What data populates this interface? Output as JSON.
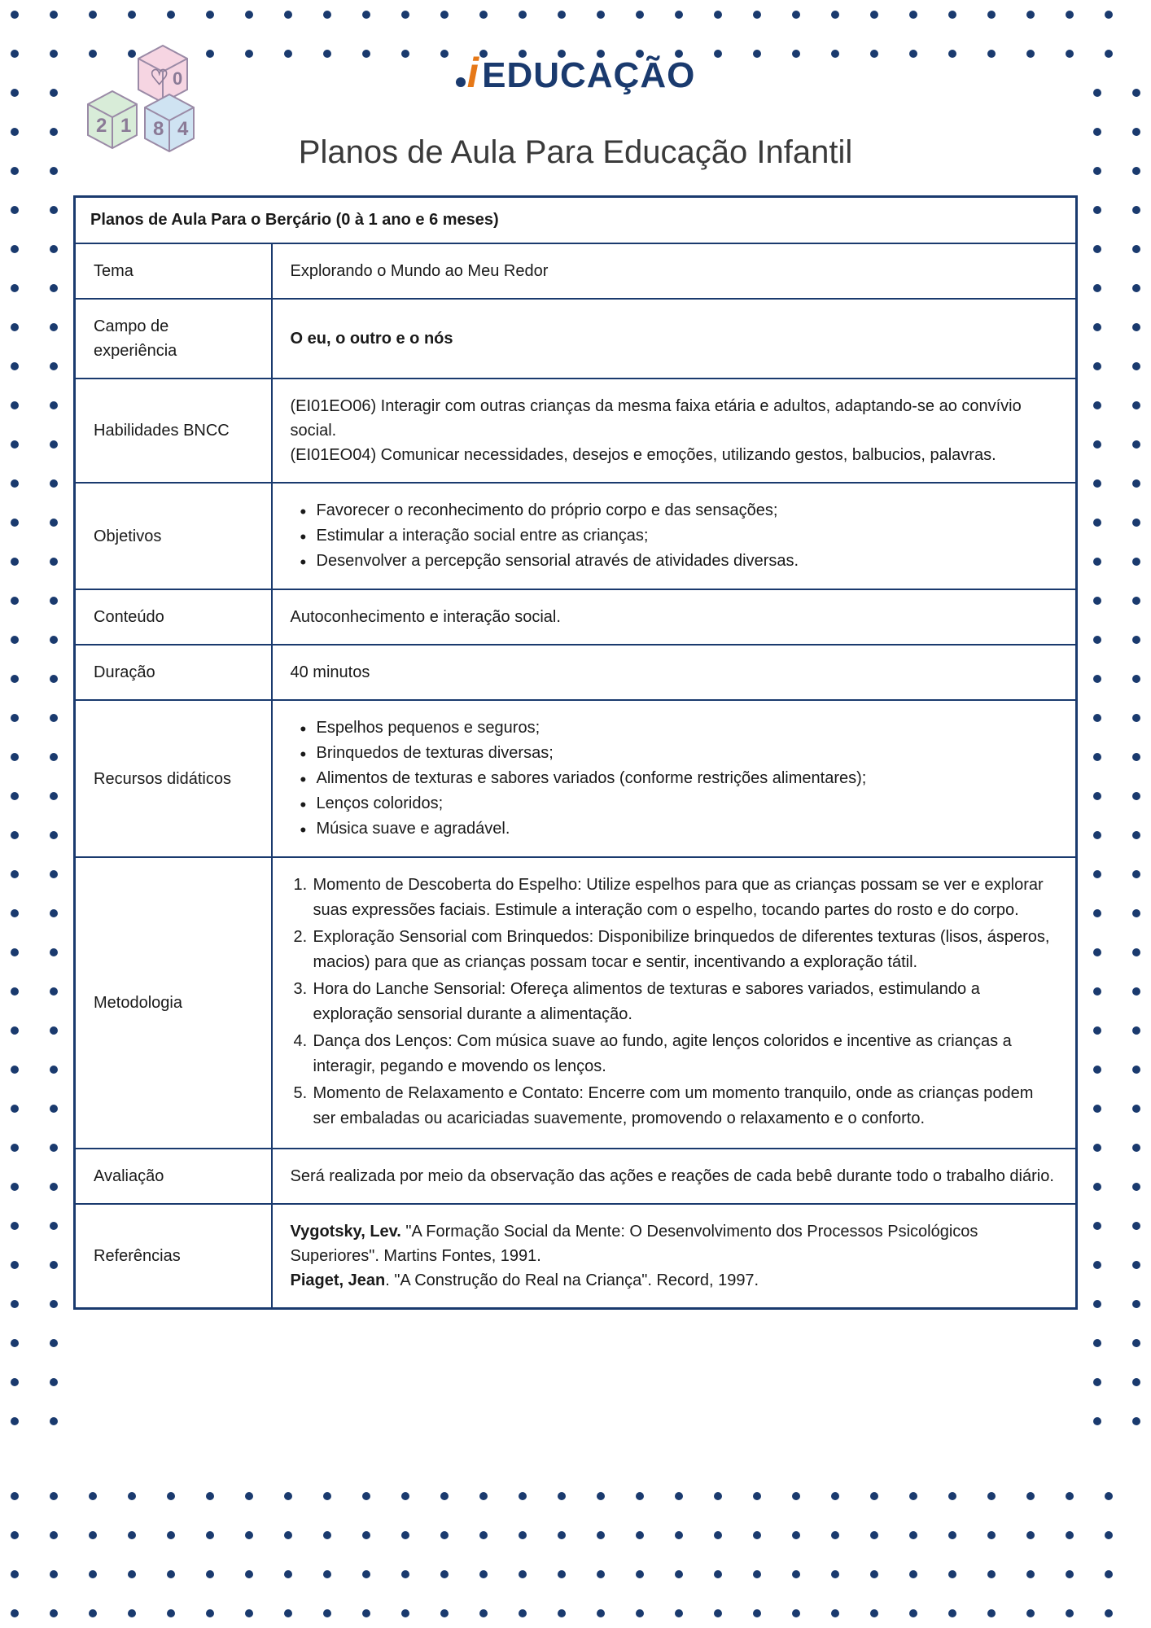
{
  "colors": {
    "navy": "#1a3a6e",
    "orange": "#e67817",
    "text": "#1a1a1a",
    "background": "#ffffff"
  },
  "logo": {
    "accent_char": "i",
    "text": "EDUCAÇÃO"
  },
  "page_title": "Planos de Aula Para Educação Infantil",
  "table": {
    "header": "Planos de Aula Para o Berçário (0 à 1 ano e 6 meses)",
    "rows": {
      "tema": {
        "label": "Tema",
        "value": "Explorando o Mundo ao Meu Redor"
      },
      "campo": {
        "label": "Campo de experiência",
        "value": "O eu, o outro e o nós"
      },
      "habilidades": {
        "label": "Habilidades BNCC",
        "line1": "(EI01EO06) Interagir com outras crianças da mesma faixa etária e adultos, adaptando-se ao convívio social.",
        "line2": "(EI01EO04) Comunicar necessidades, desejos e emoções, utilizando gestos, balbucios, palavras."
      },
      "objetivos": {
        "label": "Objetivos",
        "items": [
          "Favorecer o reconhecimento do próprio corpo e das sensações;",
          "Estimular a interação social entre as crianças;",
          "Desenvolver a percepção sensorial através de atividades diversas."
        ]
      },
      "conteudo": {
        "label": "Conteúdo",
        "value": "Autoconhecimento e interação social."
      },
      "duracao": {
        "label": "Duração",
        "value": "40 minutos"
      },
      "recursos": {
        "label": "Recursos didáticos",
        "items": [
          "Espelhos pequenos e seguros;",
          "Brinquedos de texturas diversas;",
          "Alimentos de texturas e sabores variados (conforme restrições alimentares);",
          "Lenços coloridos;",
          "Música suave e agradável."
        ]
      },
      "metodologia": {
        "label": "Metodologia",
        "items": [
          "Momento de Descoberta do Espelho: Utilize espelhos para que as crianças possam se ver e explorar suas expressões faciais. Estimule a interação com o espelho, tocando partes do rosto e do corpo.",
          "Exploração Sensorial com Brinquedos: Disponibilize brinquedos de diferentes texturas (lisos, ásperos, macios) para que as crianças possam tocar e sentir, incentivando a exploração tátil.",
          "Hora do Lanche Sensorial: Ofereça alimentos de texturas e sabores variados, estimulando a exploração sensorial durante a alimentação.",
          "Dança dos Lenços: Com música suave ao fundo, agite lenços coloridos e incentive as crianças a interagir, pegando e movendo os lenços.",
          "Momento de Relaxamento e Contato: Encerre com um momento tranquilo, onde as crianças podem ser embaladas ou acariciadas suavemente, promovendo o relaxamento e o conforto."
        ]
      },
      "avaliacao": {
        "label": "Avaliação",
        "value": "Será realizada por meio da observação das ações e reações de cada bebê durante todo o trabalho diário."
      },
      "referencias": {
        "label": "Referências",
        "ref1_author": "Vygotsky, Lev.",
        "ref1_rest": " \"A Formação Social da Mente: O Desenvolvimento dos Processos Psicológicos Superiores\". Martins Fontes, 1991.",
        "ref2_author": "Piaget, Jean",
        "ref2_rest": ". \"A Construção do Real na Criança\". Record, 1997."
      }
    }
  },
  "dots": {
    "spacing": 48,
    "size": 10,
    "margin": 18
  }
}
